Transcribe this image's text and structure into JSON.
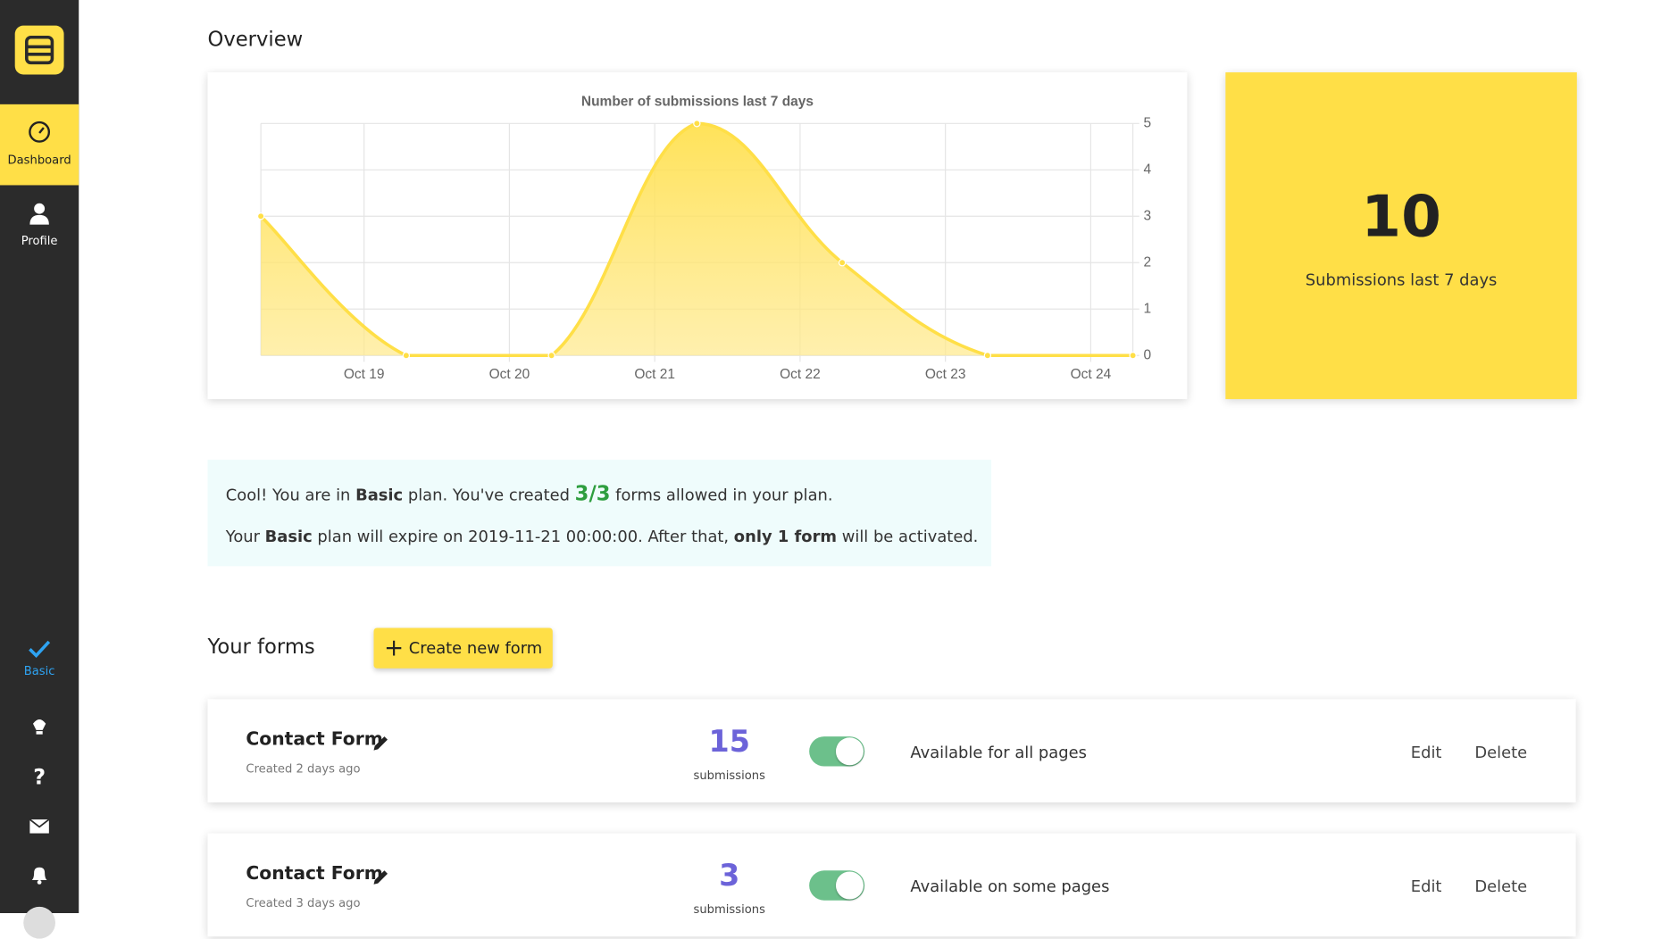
{
  "sidebar": {
    "items": [
      "Dashboard",
      "Profile"
    ],
    "plan": "Basic"
  },
  "overview": {
    "title": "Overview"
  },
  "chart_data": {
    "type": "line",
    "title": "Number of submissions last 7 days",
    "color": "#ffdf47",
    "x": [
      18.29,
      19.29,
      20.29,
      21.29,
      22.29,
      23.29,
      24.29
    ],
    "values": [
      3,
      0,
      0,
      5,
      2,
      0,
      0
    ],
    "xlim": [
      18.29,
      24.29
    ],
    "xticks": [
      {
        "value": 19,
        "label": "Oct 19"
      },
      {
        "value": 20,
        "label": "Oct 20"
      },
      {
        "value": 21,
        "label": "Oct 21"
      },
      {
        "value": 22,
        "label": "Oct 22"
      },
      {
        "value": 23,
        "label": "Oct 23"
      },
      {
        "value": 24,
        "label": "Oct 24"
      }
    ],
    "ylim": [
      0,
      5
    ],
    "yticks": [
      0,
      1,
      2,
      3,
      4,
      5
    ],
    "grid": true
  },
  "stat": {
    "value": "10",
    "label": "Submissions last 7 days"
  },
  "notice": {
    "line1": [
      "Cool! You are in ",
      "Basic",
      " plan. You've created ",
      "3/3",
      " forms allowed in your plan."
    ],
    "line2": [
      "Your ",
      "Basic",
      " plan will expire on 2019-11-21 00:00:00. After that, ",
      "only 1 form",
      " will be activated."
    ]
  },
  "forms_section": {
    "title": "Your forms",
    "button": "Create new form"
  },
  "forms": [
    {
      "name": "Contact Form",
      "created": "Created 2 days ago",
      "count": "15",
      "count_label": "submissions",
      "availability": "Available for all pages",
      "edit": "Edit",
      "delete": "Delete"
    },
    {
      "name": "Contact Form",
      "created": "Created 3 days ago",
      "count": "3",
      "count_label": "submissions",
      "availability": "Available on some pages",
      "edit": "Edit",
      "delete": "Delete"
    }
  ]
}
